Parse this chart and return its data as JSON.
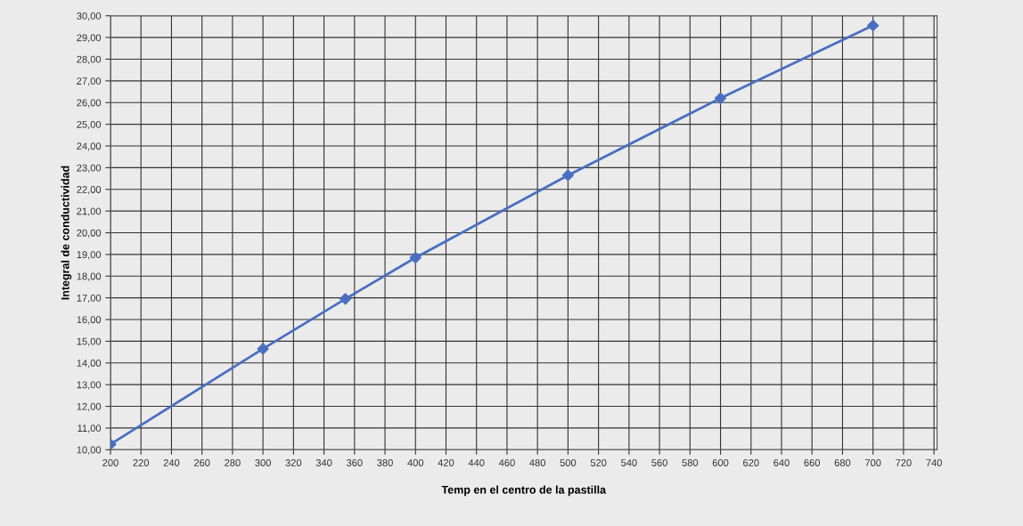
{
  "chart_data": {
    "type": "line",
    "xlabel": "Temp en el centro de la pastilla",
    "ylabel": "Integral de conductividad",
    "series": [
      {
        "color": "#4a6fc0",
        "x": [
          200,
          300,
          354,
          400,
          500,
          600,
          700
        ],
        "values": [
          10.25,
          14.65,
          16.95,
          18.85,
          22.65,
          26.2,
          29.55
        ]
      }
    ],
    "marker": "diamond",
    "line_style": "solid",
    "grid": true,
    "xlim": [
      200,
      742
    ],
    "xticks": [
      200,
      220,
      240,
      260,
      280,
      300,
      320,
      340,
      360,
      380,
      400,
      420,
      440,
      460,
      480,
      500,
      520,
      540,
      560,
      580,
      600,
      620,
      640,
      660,
      680,
      700,
      720,
      740
    ],
    "ylim": [
      10,
      30
    ],
    "yticks": [
      {
        "value": 10,
        "label": "10,00"
      },
      {
        "value": 11,
        "label": "11,00"
      },
      {
        "value": 12,
        "label": "12,00"
      },
      {
        "value": 13,
        "label": "13,00"
      },
      {
        "value": 14,
        "label": "14,00"
      },
      {
        "value": 15,
        "label": "15,00"
      },
      {
        "value": 16,
        "label": "16,00"
      },
      {
        "value": 17,
        "label": "17,00"
      },
      {
        "value": 18,
        "label": "18,00"
      },
      {
        "value": 19,
        "label": "19,00"
      },
      {
        "value": 20,
        "label": "20,00"
      },
      {
        "value": 21,
        "label": "21,00"
      },
      {
        "value": 22,
        "label": "22,00"
      },
      {
        "value": 23,
        "label": "23,00"
      },
      {
        "value": 24,
        "label": "24,00"
      },
      {
        "value": 25,
        "label": "25,00"
      },
      {
        "value": 26,
        "label": "26,00"
      },
      {
        "value": 27,
        "label": "27,00"
      },
      {
        "value": 28,
        "label": "28,00"
      },
      {
        "value": 29,
        "label": "29,00"
      },
      {
        "value": 30,
        "label": "30,00"
      }
    ]
  }
}
